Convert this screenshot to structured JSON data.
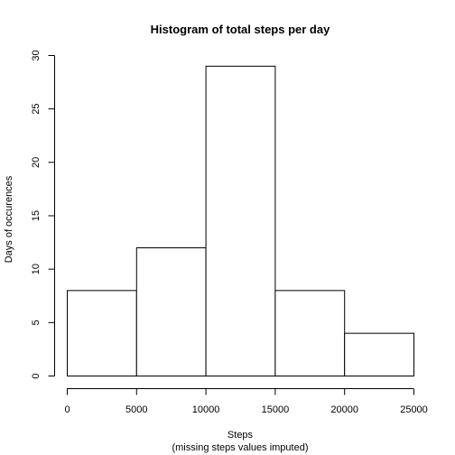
{
  "chart_data": {
    "type": "bar",
    "title": "Histogram of total steps per day",
    "xlabel": "Steps",
    "xlabel_sub": "(missing steps values imputed)",
    "ylabel": "Days of occurences",
    "bins": [
      {
        "start": 0,
        "end": 5000,
        "count": 8
      },
      {
        "start": 5000,
        "end": 10000,
        "count": 12
      },
      {
        "start": 10000,
        "end": 15000,
        "count": 29
      },
      {
        "start": 15000,
        "end": 20000,
        "count": 8
      },
      {
        "start": 20000,
        "end": 25000,
        "count": 4
      }
    ],
    "xlim": [
      0,
      25000
    ],
    "ylim": [
      0,
      30
    ],
    "x_ticks": [
      "0",
      "5000",
      "10000",
      "15000",
      "20000",
      "25000"
    ],
    "y_ticks": [
      "0",
      "5",
      "10",
      "15",
      "20",
      "25",
      "30"
    ],
    "grid": false,
    "colors": {
      "bar_fill": "#ffffff",
      "bar_stroke": "#000000"
    }
  }
}
